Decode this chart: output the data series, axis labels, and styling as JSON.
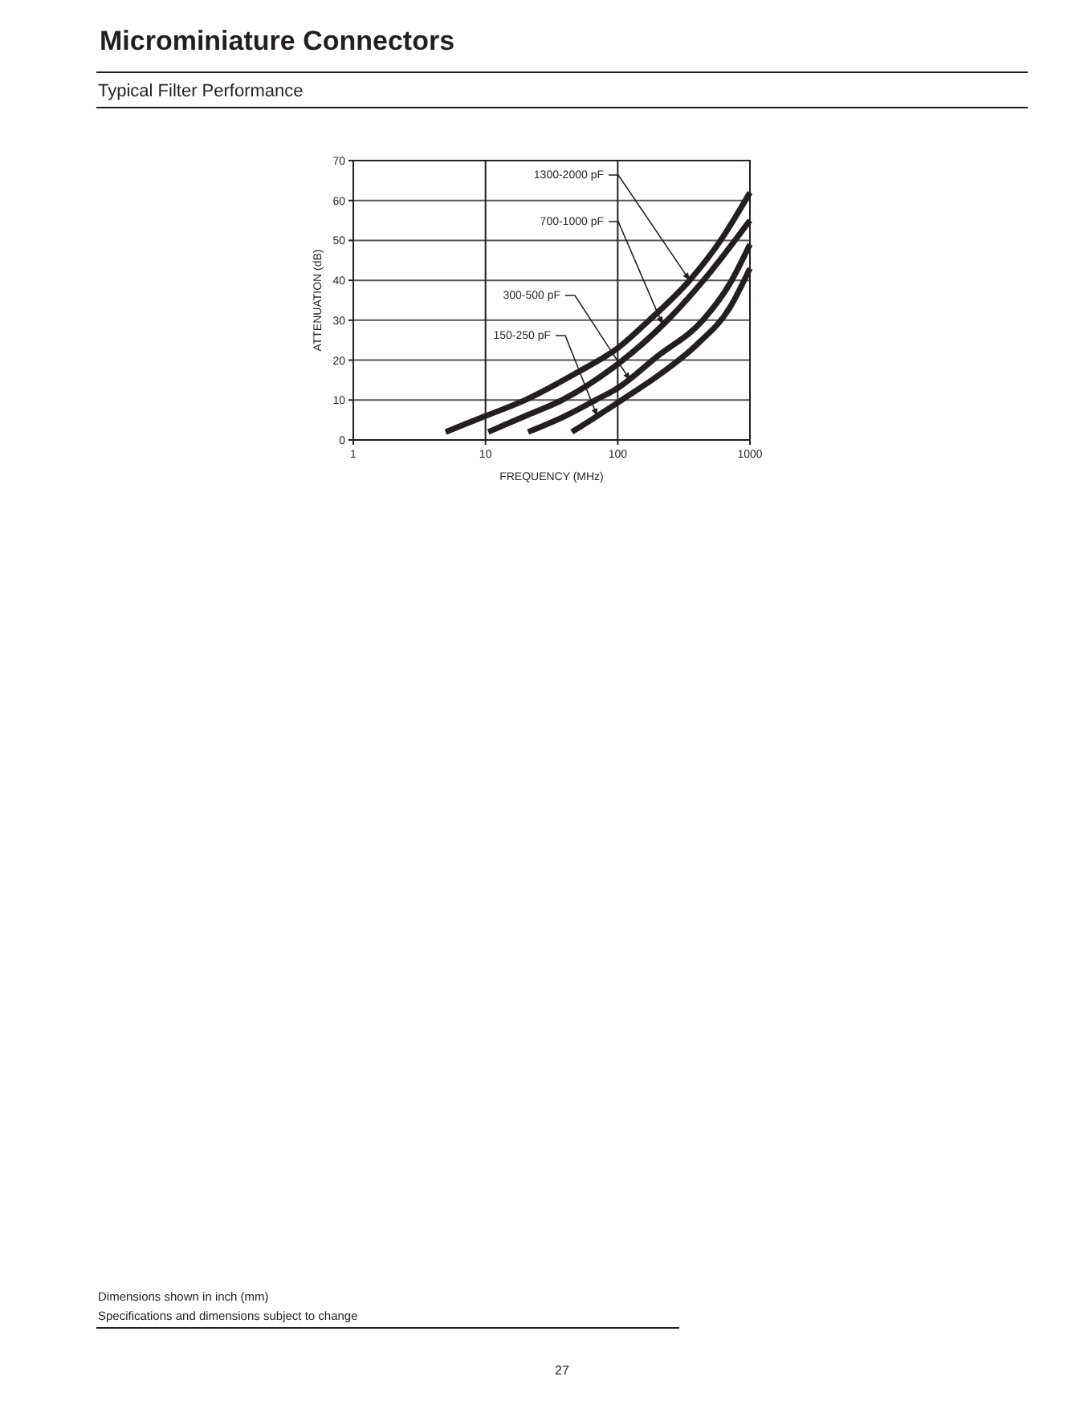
{
  "chart_data": {
    "type": "line",
    "title": "Microminiature Connectors",
    "subtitle": "Typical Filter Performance",
    "xlabel": "FREQUENCY (MHz)",
    "ylabel": "ATTENUATION (dB)",
    "log": "x",
    "xlim": [
      1,
      1000
    ],
    "xticks": [
      1,
      10,
      100,
      1000
    ],
    "ylim": [
      0,
      70
    ],
    "yticks": [
      0,
      10,
      20,
      30,
      40,
      50,
      60,
      70
    ],
    "grid": true,
    "marker": "none",
    "line_style": "solid",
    "series": [
      {
        "color": "#231f20",
        "x": [
          5,
          10,
          20,
          50,
          100,
          173,
          350,
          600,
          1000
        ],
        "values": [
          2,
          6,
          10,
          17,
          23,
          30,
          40,
          50,
          62
        ]
      },
      {
        "color": "#231f20",
        "x": [
          10.5,
          20,
          38,
          100,
          238,
          500,
          1000
        ],
        "values": [
          2,
          6,
          10,
          19,
          30,
          42,
          55
        ]
      },
      {
        "color": "#231f20",
        "x": [
          21,
          40,
          68,
          100,
          200,
          440,
          700,
          1000
        ],
        "values": [
          2,
          6,
          10,
          13,
          21,
          30,
          39,
          49
        ]
      },
      {
        "color": "#231f20",
        "x": [
          45,
          70,
          107,
          200,
          400,
          700,
          1000
        ],
        "values": [
          2,
          6,
          10,
          16,
          24,
          33,
          43
        ]
      }
    ],
    "annotations": [
      {
        "text": "1300-2000 pF",
        "x": 350,
        "y": 40
      },
      {
        "text": "700-1000 pF",
        "x": 218,
        "y": 29
      },
      {
        "text": "300-500 pF",
        "x": 124,
        "y": 15
      },
      {
        "text": "150-250 pF",
        "x": 70,
        "y": 6
      },
      "Dimensions shown in inch (mm)",
      "Specifications and dimensions subject to change",
      "27"
    ]
  }
}
